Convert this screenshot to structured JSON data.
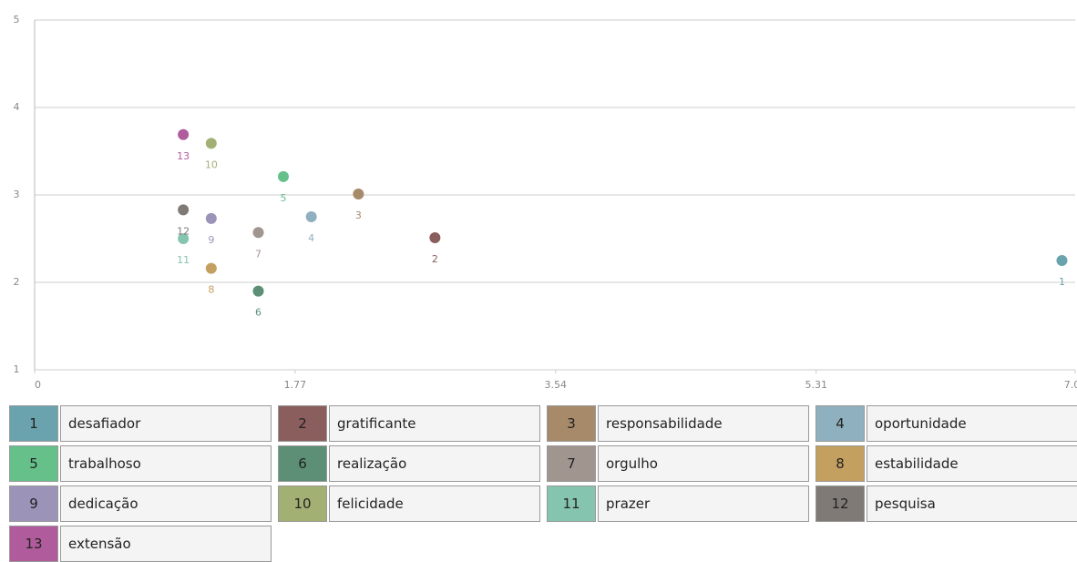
{
  "chart_data": {
    "type": "scatter",
    "xlim": [
      0,
      7.07
    ],
    "xticks": [
      0,
      1.77,
      3.54,
      5.31,
      7.07
    ],
    "ylim": [
      1,
      5
    ],
    "yticks": [
      1,
      2,
      3,
      4,
      5
    ],
    "grid": true,
    "series": [
      {
        "label": "1",
        "name": "desafiador",
        "color": "#6aa3ad",
        "x": [
          6.98
        ],
        "values": [
          2.25
        ]
      },
      {
        "label": "2",
        "name": "gratificante",
        "color": "#8b5e5e",
        "x": [
          2.72
        ],
        "values": [
          2.51
        ]
      },
      {
        "label": "3",
        "name": "responsabilidade",
        "color": "#a68a6a",
        "x": [
          2.2
        ],
        "values": [
          3.01
        ]
      },
      {
        "label": "4",
        "name": "oportunidade",
        "color": "#8fb0bf",
        "x": [
          1.88
        ],
        "values": [
          2.75
        ]
      },
      {
        "label": "5",
        "name": "trabalhoso",
        "color": "#66c08a",
        "x": [
          1.69
        ],
        "values": [
          3.21
        ]
      },
      {
        "label": "6",
        "name": "realização",
        "color": "#5c8f76",
        "x": [
          1.52
        ],
        "values": [
          1.9
        ]
      },
      {
        "label": "7",
        "name": "orgulho",
        "color": "#a0958f",
        "x": [
          1.52
        ],
        "values": [
          2.57
        ]
      },
      {
        "label": "8",
        "name": "estabilidade",
        "color": "#c4a060",
        "x": [
          1.2
        ],
        "values": [
          2.16
        ]
      },
      {
        "label": "9",
        "name": "dedicação",
        "color": "#9c94b8",
        "x": [
          1.2
        ],
        "values": [
          2.73
        ]
      },
      {
        "label": "10",
        "name": "felicidade",
        "color": "#a3b074",
        "x": [
          1.2
        ],
        "values": [
          3.59
        ]
      },
      {
        "label": "11",
        "name": "prazer",
        "color": "#85c4ae",
        "x": [
          1.01
        ],
        "values": [
          2.5
        ]
      },
      {
        "label": "12",
        "name": "pesquisa",
        "color": "#807a77",
        "x": [
          1.01
        ],
        "values": [
          2.83
        ]
      },
      {
        "label": "13",
        "name": "extensão",
        "color": "#b05c9c",
        "x": [
          1.01
        ],
        "values": [
          3.69
        ]
      }
    ]
  }
}
